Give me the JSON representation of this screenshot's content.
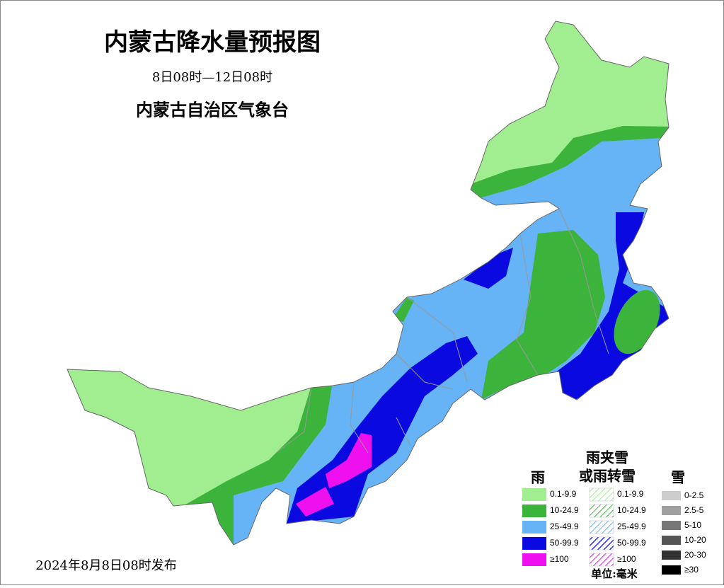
{
  "header": {
    "title": "内蒙古降水量预报图",
    "period": "8日08时—12日08时",
    "issuer": "内蒙古自治区气象台"
  },
  "legend": {
    "rain": {
      "title": "雨",
      "items": [
        "0.1-9.9",
        "10-24.9",
        "25-49.9",
        "50-99.9",
        "≥100"
      ]
    },
    "sleet": {
      "title_lines": [
        "雨夹雪",
        "或雨转雪"
      ],
      "items": [
        "0.1-9.9",
        "10-24.9",
        "25-49.9",
        "50-99.9",
        "≥100"
      ]
    },
    "snow": {
      "title": "雪",
      "items": [
        "0-2.5",
        "2.5-5",
        "5-10",
        "10-20",
        "20-30",
        "≥30"
      ]
    },
    "unit": "单位:毫米"
  },
  "footer": {
    "issued": "2024年8月8日08时发布"
  }
}
